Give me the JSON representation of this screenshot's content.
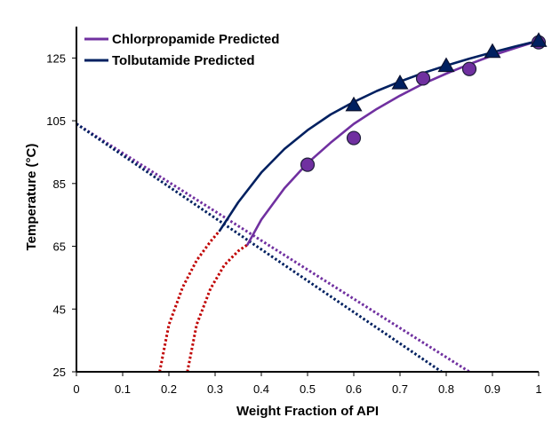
{
  "chart_data": {
    "type": "line",
    "title": "",
    "xlabel": "Weight Fraction of API",
    "ylabel": "Temperature (°C)",
    "xlim": [
      0,
      1
    ],
    "ylim": [
      25,
      135
    ],
    "x_ticks": [
      "0",
      "0.1",
      "0.2",
      "0.3",
      "0.4",
      "0.5",
      "0.6",
      "0.7",
      "0.8",
      "0.9",
      "1"
    ],
    "y_ticks": [
      "25",
      "45",
      "65",
      "85",
      "105",
      "125"
    ],
    "grid": false,
    "legend_position": "top-left",
    "colors": {
      "chlorpropamide": "#7030a0",
      "tolbutamide": "#002060",
      "spinodal": "#c00000",
      "axis": "#000000"
    },
    "series": [
      {
        "name": "Chlorpropamide Predicted",
        "style": "solid",
        "color": "#7030a0",
        "x": [
          0.37,
          0.4,
          0.45,
          0.5,
          0.55,
          0.6,
          0.65,
          0.7,
          0.75,
          0.8,
          0.85,
          0.9,
          0.95,
          1.0
        ],
        "y": [
          65.5,
          73.5,
          83.5,
          91.5,
          98.0,
          104.0,
          108.8,
          113.0,
          116.8,
          120.0,
          123.0,
          125.8,
          128.2,
          130.5
        ]
      },
      {
        "name": "Tolbutamide Predicted",
        "style": "solid",
        "color": "#002060",
        "x": [
          0.31,
          0.35,
          0.4,
          0.45,
          0.5,
          0.55,
          0.6,
          0.65,
          0.7,
          0.75,
          0.8,
          0.85,
          0.9,
          0.95,
          1.0
        ],
        "y": [
          70.0,
          79.0,
          88.5,
          96.0,
          102.0,
          107.0,
          111.0,
          114.5,
          117.5,
          120.2,
          122.6,
          124.8,
          126.8,
          128.7,
          130.5
        ]
      },
      {
        "style": "markers-circle",
        "color": "#7030a0",
        "x": [
          0.5,
          0.6,
          0.75,
          0.85,
          1.0
        ],
        "y": [
          91.0,
          99.5,
          118.5,
          121.5,
          130.0
        ]
      },
      {
        "style": "markers-triangle",
        "color": "#002060",
        "x": [
          0.6,
          0.7,
          0.8,
          0.9,
          1.0
        ],
        "y": [
          110.0,
          117.0,
          122.5,
          127.0,
          130.5
        ]
      },
      {
        "style": "dotted",
        "color": "#7030a0",
        "x": [
          0.0,
          0.85
        ],
        "y": [
          104.0,
          25.0
        ]
      },
      {
        "style": "dotted",
        "color": "#002060",
        "x": [
          0.0,
          0.79
        ],
        "y": [
          104.0,
          25.0
        ]
      },
      {
        "style": "dotted",
        "color": "#c00000",
        "x": [
          0.18,
          0.2,
          0.23,
          0.26,
          0.29,
          0.31
        ],
        "y": [
          25.0,
          40.0,
          52.0,
          60.5,
          66.5,
          70.0
        ]
      },
      {
        "style": "dotted",
        "color": "#c00000",
        "x": [
          0.24,
          0.26,
          0.29,
          0.32,
          0.35,
          0.37
        ],
        "y": [
          25.0,
          40.0,
          51.5,
          59.0,
          63.5,
          65.5
        ]
      }
    ]
  }
}
